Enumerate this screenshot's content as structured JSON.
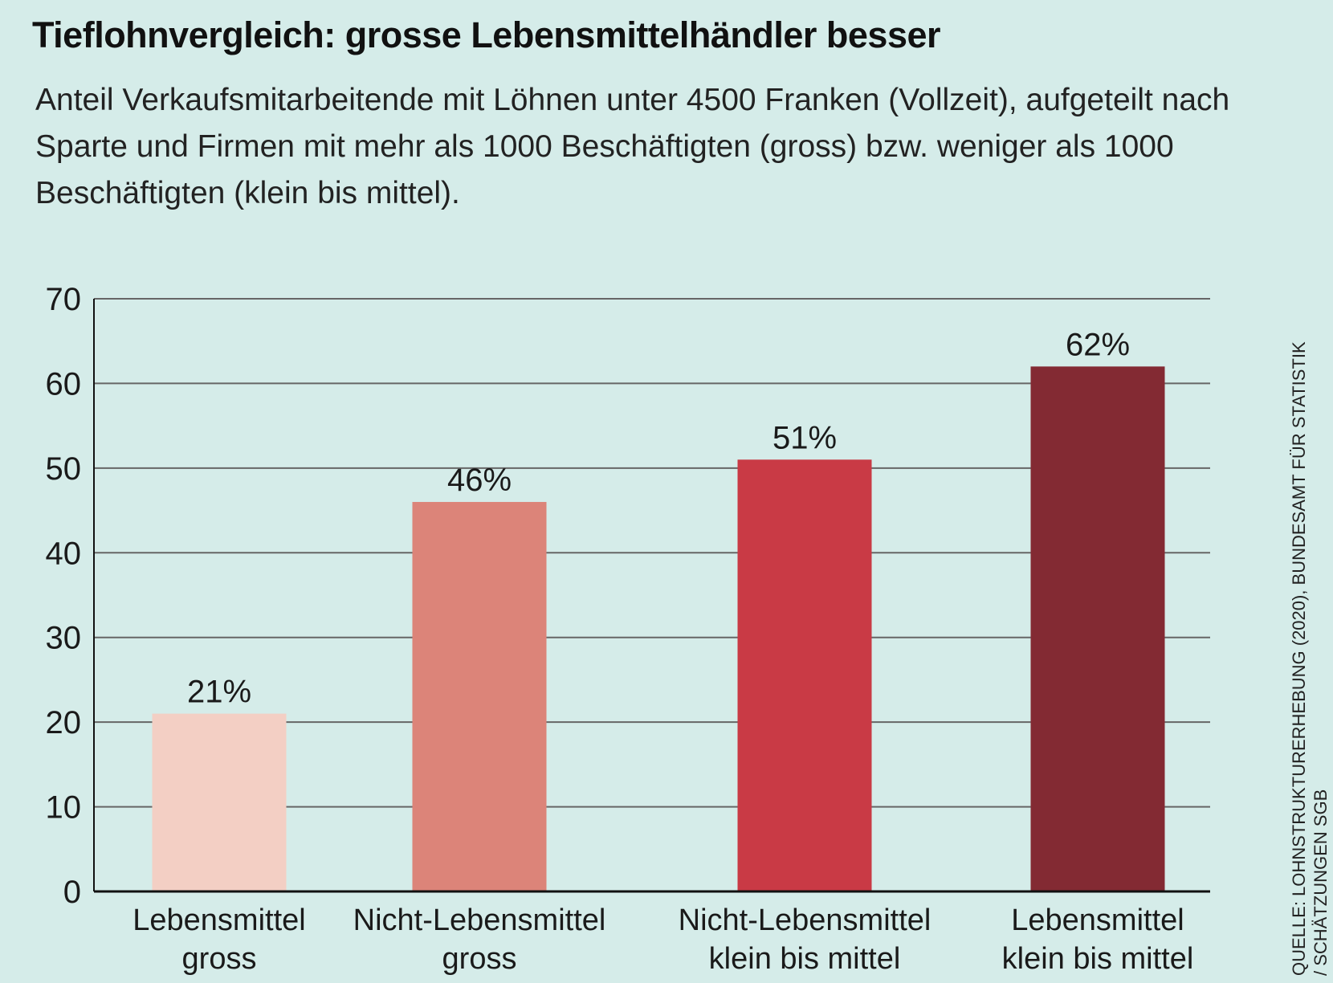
{
  "chart_data": {
    "type": "bar",
    "title": "Tieflohnvergleich: grosse Lebensmittelhändler besser",
    "subtitle": "Anteil Verkaufsmitarbeitende mit Löhnen unter 4500 Franken (Vollzeit), aufgeteilt nach Sparte und Firmen mit mehr als 1000 Beschäftigten (gross) bzw. weniger als 1000 Beschäftigten (klein bis mittel).",
    "source": "QUELLE: LOHNSTRUKTURERHEBUNG (2020), BUNDESAMT FÜR STATISTIK / SCHÄTZUNGEN SGB",
    "categories": [
      [
        "Lebensmittel",
        "gross"
      ],
      [
        "Nicht-Lebensmittel",
        "gross"
      ],
      [
        "Nicht-Lebensmittel",
        "klein bis mittel"
      ],
      [
        "Lebensmittel",
        "klein bis mittel"
      ]
    ],
    "values": [
      21,
      46,
      51,
      62
    ],
    "value_labels": [
      "21%",
      "46%",
      "51%",
      "62%"
    ],
    "colors": [
      "#f3cfc4",
      "#dc8479",
      "#c93a45",
      "#832a33"
    ],
    "ylim": [
      0,
      70
    ],
    "yticks": [
      0,
      10,
      20,
      30,
      40,
      50,
      60,
      70
    ],
    "grid": true
  }
}
